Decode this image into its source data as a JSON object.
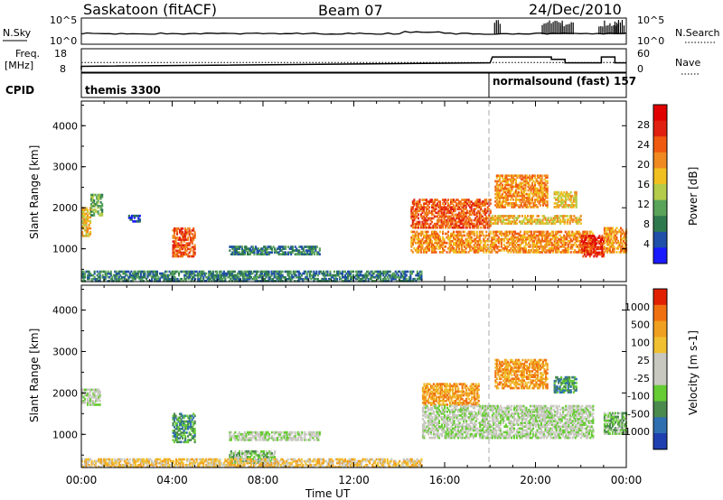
{
  "header": {
    "station": "Saskatoon (fitACF)",
    "beam": "Beam 07",
    "date": "24/Dec/2010"
  },
  "strip_labels": {
    "nsky": "N.Sky",
    "nsky_hi": "10^5",
    "nsky_lo": "10^0",
    "nsky_right_hi": "10^5",
    "nsky_right_lo": "10^0",
    "nsearch": "N.Search",
    "freq": "Freq.",
    "freq_unit": "[MHz]",
    "freq_hi": "18",
    "freq_lo": "8",
    "nave_hi": "60",
    "nave_lo": "0",
    "nave": "Nave",
    "cpid": "CPID",
    "cpid_1": "themis 3300",
    "cpid_2": "normalsound (fast) 157"
  },
  "colors": {
    "power_scale": [
      "#1a1aff",
      "#1f4fa8",
      "#2e7a4e",
      "#59a35a",
      "#b4cc4a",
      "#f0c020",
      "#f08a20",
      "#f05a10",
      "#e02010",
      "#e00000"
    ],
    "velocity_scale": [
      "#1f3fb0",
      "#2f6fb0",
      "#4a8a4e",
      "#66cc33",
      "#c8c8c0",
      "#c8c8c0",
      "#f0c030",
      "#f0a020",
      "#f07010",
      "#e02000"
    ],
    "ground_scatter": "#c8c8c0"
  },
  "chart_data": [
    {
      "type": "heatmap",
      "title": "",
      "xlabel": "Time UT",
      "ylabel": "Slant Range [km]",
      "colorbar_label": "Power [dB]",
      "colorbar_ticks": [
        "4",
        "8",
        "12",
        "16",
        "20",
        "24",
        "28"
      ],
      "x_ticks": [
        "00:00",
        "04:00",
        "08:00",
        "12:00",
        "16:00",
        "20:00",
        "00:00"
      ],
      "y_ticks": [
        "1000",
        "2000",
        "3000",
        "4000"
      ],
      "xlim_hours": [
        0,
        24
      ],
      "ylim_km": [
        200,
        4600
      ],
      "regions": [
        {
          "t0": 0.0,
          "t1": 0.4,
          "r0": 1300,
          "r1": 2000,
          "level": 5
        },
        {
          "t0": 0.4,
          "t1": 0.9,
          "r0": 1800,
          "r1": 2300,
          "level": 3
        },
        {
          "t0": 2.0,
          "t1": 2.6,
          "r0": 1650,
          "r1": 1800,
          "level": 1
        },
        {
          "t0": 4.0,
          "t1": 5.0,
          "r0": 800,
          "r1": 1500,
          "level": 7
        },
        {
          "t0": 6.5,
          "t1": 10.5,
          "r0": 850,
          "r1": 1050,
          "level": 2
        },
        {
          "t0": 0.0,
          "t1": 15.0,
          "r0": 200,
          "r1": 450,
          "level": 2
        },
        {
          "t0": 14.5,
          "t1": 18.0,
          "r0": 1500,
          "r1": 2200,
          "level": 7
        },
        {
          "t0": 14.5,
          "t1": 22.5,
          "r0": 900,
          "r1": 1400,
          "level": 6
        },
        {
          "t0": 18.0,
          "t1": 22.0,
          "r0": 1600,
          "r1": 1800,
          "level": 5
        },
        {
          "t0": 18.2,
          "t1": 20.5,
          "r0": 2000,
          "r1": 2800,
          "level": 6
        },
        {
          "t0": 20.8,
          "t1": 21.8,
          "r0": 2000,
          "r1": 2400,
          "level": 5
        },
        {
          "t0": 22.0,
          "t1": 23.0,
          "r0": 800,
          "r1": 1300,
          "level": 8
        },
        {
          "t0": 23.0,
          "t1": 24.0,
          "r0": 900,
          "r1": 1500,
          "level": 6
        }
      ]
    },
    {
      "type": "heatmap",
      "title": "",
      "xlabel": "Time UT",
      "ylabel": "Slant Range [km]",
      "colorbar_label": "Velocity [m s-1]",
      "colorbar_ticks": [
        "1000",
        "500",
        "100",
        "25",
        "-25",
        "-100",
        "-500",
        "-1000"
      ],
      "x_ticks": [
        "00:00",
        "04:00",
        "08:00",
        "12:00",
        "16:00",
        "20:00",
        "00:00"
      ],
      "y_ticks": [
        "1000",
        "2000",
        "3000",
        "4000"
      ],
      "xlim_hours": [
        0,
        24
      ],
      "ylim_km": [
        200,
        4600
      ],
      "regions": [
        {
          "t0": 0.0,
          "t1": 0.8,
          "r0": 1700,
          "r1": 2100,
          "level": 4
        },
        {
          "t0": 4.0,
          "t1": 5.0,
          "r0": 800,
          "r1": 1500,
          "level": 2
        },
        {
          "t0": 6.5,
          "t1": 8.5,
          "r0": 300,
          "r1": 600,
          "level": 3
        },
        {
          "t0": 6.5,
          "t1": 10.5,
          "r0": 850,
          "r1": 1050,
          "level": 4
        },
        {
          "t0": 0.0,
          "t1": 15.0,
          "r0": 200,
          "r1": 400,
          "level": 6
        },
        {
          "t0": 15.0,
          "t1": 17.5,
          "r0": 1700,
          "r1": 2200,
          "level": 7
        },
        {
          "t0": 15.0,
          "t1": 22.5,
          "r0": 900,
          "r1": 1700,
          "level": 4
        },
        {
          "t0": 18.2,
          "t1": 20.5,
          "r0": 2100,
          "r1": 2800,
          "level": 7
        },
        {
          "t0": 20.8,
          "t1": 21.8,
          "r0": 2000,
          "r1": 2400,
          "level": 2
        },
        {
          "t0": 23.0,
          "t1": 24.0,
          "r0": 1000,
          "r1": 1500,
          "level": 3
        }
      ]
    }
  ]
}
